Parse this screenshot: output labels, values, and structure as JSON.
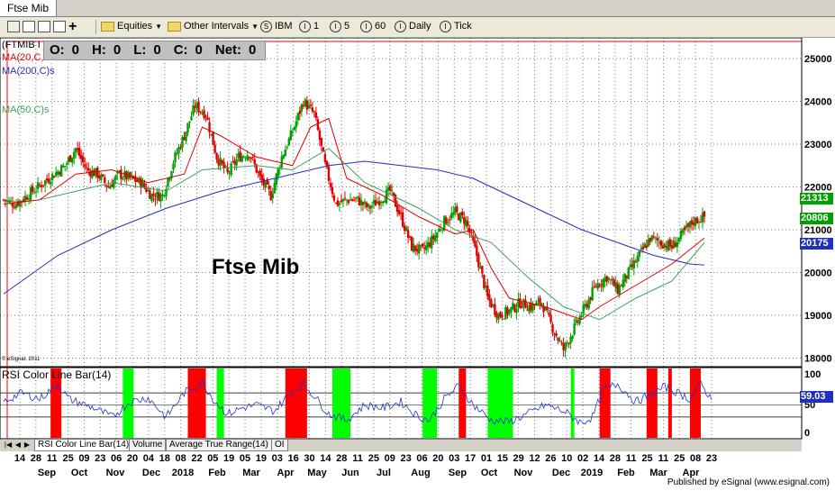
{
  "window": {
    "tab_label": "Ftse Mib"
  },
  "toolbar": {
    "equities_label": "Equities",
    "intervals_label": "Other Intervals",
    "buttons": [
      "IBM",
      "1",
      "5",
      "60",
      "Daily",
      "Tick"
    ]
  },
  "legend": {
    "symbol": "(FTMIB I",
    "ma20": "MA(20,C,s",
    "ma200": "MA(200,C)s",
    "ma50": "MA(50,C)s",
    "copyright": "© eSignal, 2011"
  },
  "ohlc": {
    "o_label": "O:",
    "o_value": "0",
    "h_label": "H:",
    "h_value": "0",
    "l_label": "L:",
    "l_value": "0",
    "c_label": "C:",
    "c_value": "0",
    "net_label": "Net:",
    "net_value": "0"
  },
  "chart_title": "Ftse Mib",
  "price_tags": {
    "last": "21313",
    "ma20": "20806",
    "ma200": "20175",
    "rsi": "59.03"
  },
  "rsi_panel": {
    "label": "RSI Color Line Bar(14)"
  },
  "bottom_tabs": [
    "RSI Color Line Bar(14)",
    "Volume",
    "Average True Range(14)",
    "OI"
  ],
  "footer": "Published by eSignal (www.esignal.com)",
  "colors": {
    "up": "#00a000",
    "down": "#e00000",
    "ma20": "#e00000",
    "ma50": "#3aa35a",
    "ma200": "#1f2fbf",
    "rsi_line": "#2233cc",
    "rsi_over": "#ff0000",
    "rsi_under": "#00ff00",
    "price_tag": "#00a000",
    "ma20_tag": "#00a000",
    "ma200_tag": "#1f2fbf"
  },
  "chart_data": {
    "type": "candlestick",
    "title": "Ftse Mib",
    "y_ticks": [
      25000,
      24000,
      23000,
      22000,
      21000,
      20000,
      19000,
      18000
    ],
    "ylim": [
      17800,
      25400
    ],
    "rsi_ticks": [
      100,
      50,
      0
    ],
    "x_day_labels": [
      "14",
      "28",
      "11",
      "25",
      "09",
      "23",
      "06",
      "20",
      "04",
      "18",
      "08",
      "22",
      "05",
      "19",
      "05",
      "19",
      "03",
      "16",
      "30",
      "14",
      "28",
      "11",
      "25",
      "09",
      "23",
      "06",
      "20",
      "03",
      "17",
      "01",
      "15",
      "29",
      "12",
      "26",
      "10",
      "02",
      "14",
      "28",
      "11",
      "25",
      "11",
      "25",
      "08",
      "23"
    ],
    "x_month_labels": [
      "Sep",
      "Oct",
      "Nov",
      "Dec",
      "2018",
      "Feb",
      "Mar",
      "Apr",
      "May",
      "Jun",
      "Jul",
      "Aug",
      "Sep",
      "Oct",
      "Nov",
      "Dec",
      "2019",
      "Feb",
      "Mar",
      "Apr"
    ],
    "close_path": [
      [
        0,
        21700
      ],
      [
        3,
        21600
      ],
      [
        5,
        21700
      ],
      [
        8,
        21900
      ],
      [
        11,
        22100
      ],
      [
        14,
        22300
      ],
      [
        17,
        22500
      ],
      [
        20,
        22900
      ],
      [
        23,
        22400
      ],
      [
        26,
        22300
      ],
      [
        29,
        22000
      ],
      [
        32,
        22300
      ],
      [
        35,
        22200
      ],
      [
        38,
        22100
      ],
      [
        41,
        21800
      ],
      [
        44,
        21800
      ],
      [
        47,
        22600
      ],
      [
        50,
        23200
      ],
      [
        53,
        23900
      ],
      [
        56,
        23700
      ],
      [
        59,
        22700
      ],
      [
        62,
        22300
      ],
      [
        65,
        22700
      ],
      [
        68,
        22800
      ],
      [
        71,
        22200
      ],
      [
        74,
        21800
      ],
      [
        77,
        22700
      ],
      [
        80,
        23300
      ],
      [
        83,
        24000
      ],
      [
        86,
        23700
      ],
      [
        89,
        22500
      ],
      [
        92,
        21600
      ],
      [
        95,
        21700
      ],
      [
        98,
        21700
      ],
      [
        101,
        21500
      ],
      [
        104,
        21700
      ],
      [
        107,
        21900
      ],
      [
        110,
        21300
      ],
      [
        113,
        20600
      ],
      [
        116,
        20500
      ],
      [
        119,
        20800
      ],
      [
        122,
        21200
      ],
      [
        125,
        21400
      ],
      [
        128,
        21200
      ],
      [
        131,
        20400
      ],
      [
        134,
        19400
      ],
      [
        137,
        19000
      ],
      [
        140,
        19100
      ],
      [
        143,
        19300
      ],
      [
        146,
        19200
      ],
      [
        149,
        19300
      ],
      [
        152,
        18700
      ],
      [
        155,
        18200
      ],
      [
        158,
        18700
      ],
      [
        161,
        19200
      ],
      [
        164,
        19700
      ],
      [
        167,
        19900
      ],
      [
        170,
        19600
      ],
      [
        173,
        20000
      ],
      [
        176,
        20400
      ],
      [
        179,
        20800
      ],
      [
        182,
        20700
      ],
      [
        185,
        20600
      ],
      [
        188,
        20900
      ],
      [
        191,
        21200
      ],
      [
        194,
        21300
      ]
    ],
    "ma20_path": [
      [
        0,
        21600
      ],
      [
        10,
        21700
      ],
      [
        20,
        22300
      ],
      [
        30,
        22400
      ],
      [
        40,
        22100
      ],
      [
        50,
        22300
      ],
      [
        55,
        23400
      ],
      [
        60,
        23200
      ],
      [
        70,
        22700
      ],
      [
        80,
        22500
      ],
      [
        85,
        23400
      ],
      [
        90,
        23600
      ],
      [
        95,
        22200
      ],
      [
        105,
        21800
      ],
      [
        115,
        21300
      ],
      [
        125,
        20900
      ],
      [
        130,
        21000
      ],
      [
        135,
        20100
      ],
      [
        140,
        19400
      ],
      [
        150,
        19200
      ],
      [
        160,
        18900
      ],
      [
        165,
        19200
      ],
      [
        175,
        19700
      ],
      [
        185,
        20200
      ],
      [
        194,
        20806
      ]
    ],
    "ma50_path": [
      [
        10,
        21700
      ],
      [
        30,
        22100
      ],
      [
        45,
        21900
      ],
      [
        55,
        22400
      ],
      [
        70,
        22500
      ],
      [
        80,
        22400
      ],
      [
        90,
        22900
      ],
      [
        100,
        22100
      ],
      [
        115,
        21500
      ],
      [
        125,
        21000
      ],
      [
        135,
        20700
      ],
      [
        145,
        19900
      ],
      [
        155,
        19200
      ],
      [
        165,
        18900
      ],
      [
        175,
        19400
      ],
      [
        185,
        19800
      ],
      [
        194,
        20700
      ]
    ],
    "ma200_path": [
      [
        0,
        19500
      ],
      [
        15,
        20400
      ],
      [
        30,
        21000
      ],
      [
        45,
        21500
      ],
      [
        60,
        21900
      ],
      [
        75,
        22200
      ],
      [
        90,
        22500
      ],
      [
        100,
        22600
      ],
      [
        110,
        22500
      ],
      [
        120,
        22400
      ],
      [
        130,
        22200
      ],
      [
        140,
        21800
      ],
      [
        150,
        21400
      ],
      [
        160,
        21000
      ],
      [
        170,
        20700
      ],
      [
        180,
        20400
      ],
      [
        190,
        20200
      ],
      [
        194,
        20175
      ]
    ],
    "rsi_path": [
      [
        0,
        55
      ],
      [
        5,
        70
      ],
      [
        10,
        60
      ],
      [
        15,
        85
      ],
      [
        18,
        60
      ],
      [
        25,
        45
      ],
      [
        30,
        30
      ],
      [
        35,
        55
      ],
      [
        40,
        62
      ],
      [
        45,
        30
      ],
      [
        50,
        70
      ],
      [
        55,
        88
      ],
      [
        58,
        60
      ],
      [
        62,
        35
      ],
      [
        66,
        45
      ],
      [
        70,
        50
      ],
      [
        75,
        40
      ],
      [
        80,
        75
      ],
      [
        83,
        85
      ],
      [
        86,
        65
      ],
      [
        90,
        35
      ],
      [
        95,
        25
      ],
      [
        100,
        50
      ],
      [
        105,
        45
      ],
      [
        110,
        55
      ],
      [
        115,
        30
      ],
      [
        118,
        25
      ],
      [
        122,
        60
      ],
      [
        126,
        82
      ],
      [
        130,
        50
      ],
      [
        135,
        25
      ],
      [
        140,
        22
      ],
      [
        145,
        35
      ],
      [
        150,
        50
      ],
      [
        155,
        40
      ],
      [
        160,
        20
      ],
      [
        163,
        30
      ],
      [
        166,
        75
      ],
      [
        170,
        85
      ],
      [
        175,
        55
      ],
      [
        180,
        70
      ],
      [
        183,
        80
      ],
      [
        186,
        72
      ],
      [
        190,
        60
      ],
      [
        193,
        85
      ],
      [
        196,
        59
      ]
    ],
    "rsi_overbought_ranges": [
      [
        13,
        16
      ],
      [
        51,
        56
      ],
      [
        78,
        84
      ],
      [
        126,
        128
      ],
      [
        165,
        168
      ],
      [
        178,
        181
      ],
      [
        184,
        185
      ],
      [
        190,
        193
      ]
    ],
    "rsi_oversold_ranges": [
      [
        33,
        36
      ],
      [
        59,
        61
      ],
      [
        91,
        96
      ],
      [
        116,
        120
      ],
      [
        134,
        141
      ],
      [
        157,
        158
      ]
    ]
  }
}
